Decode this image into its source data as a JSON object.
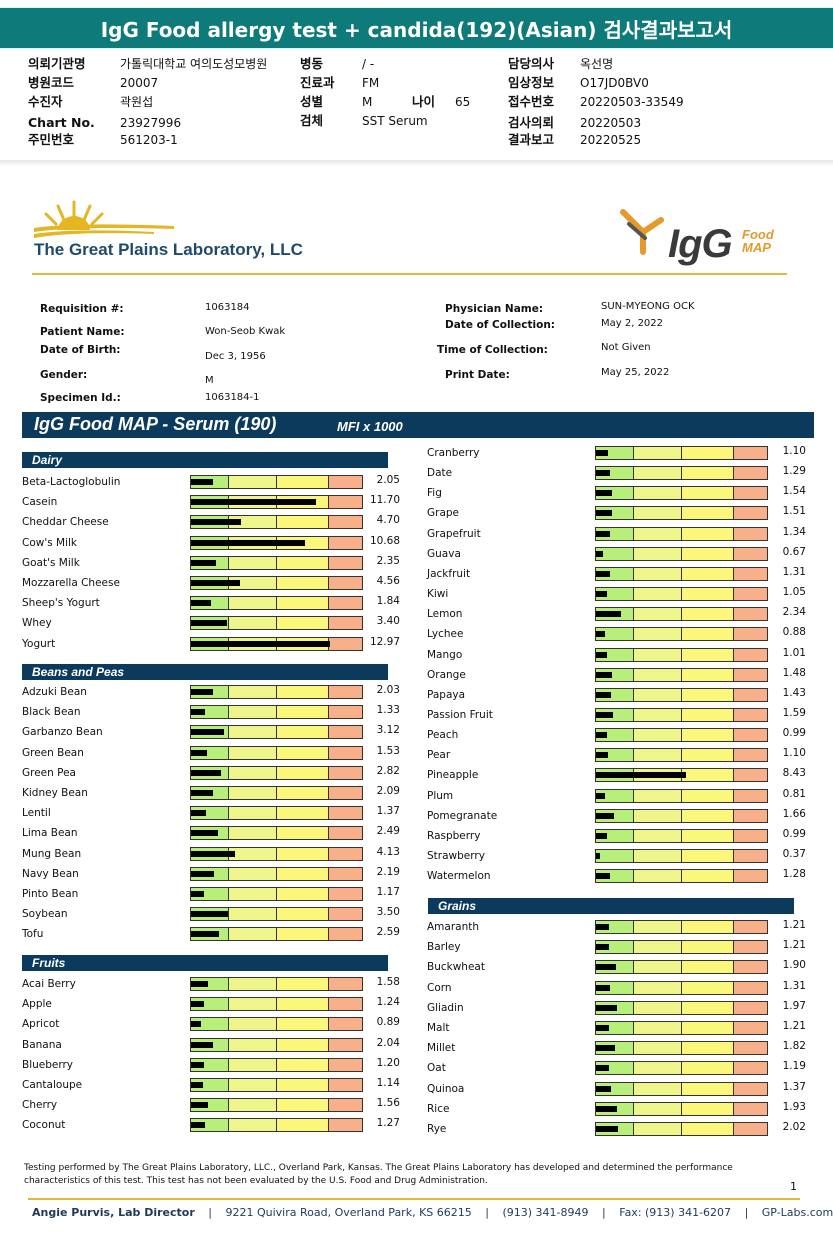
{
  "report_title": "IgG Food allergy test + candida(192)(Asian) 검사결과보고서",
  "header": [
    {
      "label": "의뢰기관명",
      "value": "가톨릭대학교 여의도성모병원"
    },
    {
      "label": "병원코드",
      "value": "20007"
    },
    {
      "label": "수진자",
      "value": "곽원섭"
    },
    {
      "label": "Chart No.",
      "value": "23927996"
    },
    {
      "label": "주민번호",
      "value": "561203-1"
    },
    {
      "label": "병동",
      "value": "/ -"
    },
    {
      "label": "진료과",
      "value": "FM"
    },
    {
      "label": "성별",
      "value": "M"
    },
    {
      "label": "나이",
      "value": "65"
    },
    {
      "label": "검체",
      "value": "SST Serum"
    },
    {
      "label": "담당의사",
      "value": "옥선명"
    },
    {
      "label": "임상정보",
      "value": "O17JD0BV0"
    },
    {
      "label": "접수번호",
      "value": "20220503-33549"
    },
    {
      "label": "검사의뢰",
      "value": "20220503"
    },
    {
      "label": "결과보고",
      "value": "20220525"
    }
  ],
  "lab_name": "The Great Plains Laboratory, LLC",
  "logo": {
    "main": "IgG",
    "sub1": "Food",
    "sub2": "MAP"
  },
  "patient": {
    "requisition_label": "Requisition #:",
    "requisition": "1063184",
    "name_label": "Patient Name:",
    "name": "Won-Seob Kwak",
    "dob_label": "Date of Birth:",
    "dob": "Dec 3, 1956",
    "gender_label": "Gender:",
    "gender": "M",
    "specimen_label": "Specimen Id.:",
    "specimen": "1063184-1",
    "physician_label": "Physician Name:",
    "physician": "SUN-MYEONG OCK",
    "collection_date_label": "Date of Collection:",
    "collection_date": "May 2, 2022",
    "collection_time_label": "Time of Collection:",
    "collection_time": "Not Given",
    "print_date_label": "Print Date:",
    "print_date": "May 25, 2022"
  },
  "map_title": "IgG Food MAP - Serum (190)",
  "map_unit": "MFI x 1000",
  "chart_data": {
    "type": "bar",
    "unit": "MFI x 1000",
    "groups": [
      {
        "name": "Dairy",
        "items": [
          [
            "Beta-Lactoglobulin",
            2.05
          ],
          [
            "Casein",
            11.7
          ],
          [
            "Cheddar Cheese",
            4.7
          ],
          [
            "Cow's Milk",
            10.68
          ],
          [
            "Goat's Milk",
            2.35
          ],
          [
            "Mozzarella Cheese",
            4.56
          ],
          [
            "Sheep's Yogurt",
            1.84
          ],
          [
            "Whey",
            3.4
          ],
          [
            "Yogurt",
            12.97
          ]
        ]
      },
      {
        "name": "Beans and Peas",
        "items": [
          [
            "Adzuki Bean",
            2.03
          ],
          [
            "Black Bean",
            1.33
          ],
          [
            "Garbanzo Bean",
            3.12
          ],
          [
            "Green Bean",
            1.53
          ],
          [
            "Green Pea",
            2.82
          ],
          [
            "Kidney Bean",
            2.09
          ],
          [
            "Lentil",
            1.37
          ],
          [
            "Lima Bean",
            2.49
          ],
          [
            "Mung Bean",
            4.13
          ],
          [
            "Navy Bean",
            2.19
          ],
          [
            "Pinto Bean",
            1.17
          ],
          [
            "Soybean",
            3.5
          ],
          [
            "Tofu",
            2.59
          ]
        ]
      },
      {
        "name": "Fruits",
        "items": [
          [
            "Acai Berry",
            1.58
          ],
          [
            "Apple",
            1.24
          ],
          [
            "Apricot",
            0.89
          ],
          [
            "Banana",
            2.04
          ],
          [
            "Blueberry",
            1.2
          ],
          [
            "Cantaloupe",
            1.14
          ],
          [
            "Cherry",
            1.56
          ],
          [
            "Coconut",
            1.27
          ],
          [
            "Cranberry",
            1.1
          ],
          [
            "Date",
            1.29
          ],
          [
            "Fig",
            1.54
          ],
          [
            "Grape",
            1.51
          ],
          [
            "Grapefruit",
            1.34
          ],
          [
            "Guava",
            0.67
          ],
          [
            "Jackfruit",
            1.31
          ],
          [
            "Kiwi",
            1.05
          ],
          [
            "Lemon",
            2.34
          ],
          [
            "Lychee",
            0.88
          ],
          [
            "Mango",
            1.01
          ],
          [
            "Orange",
            1.48
          ],
          [
            "Papaya",
            1.43
          ],
          [
            "Passion Fruit",
            1.59
          ],
          [
            "Peach",
            0.99
          ],
          [
            "Pear",
            1.1
          ],
          [
            "Pineapple",
            8.43
          ],
          [
            "Plum",
            0.81
          ],
          [
            "Pomegranate",
            1.66
          ],
          [
            "Raspberry",
            0.99
          ],
          [
            "Strawberry",
            0.37
          ],
          [
            "Watermelon",
            1.28
          ]
        ]
      },
      {
        "name": "Grains",
        "items": [
          [
            "Amaranth",
            1.21
          ],
          [
            "Barley",
            1.21
          ],
          [
            "Buckwheat",
            1.9
          ],
          [
            "Corn",
            1.31
          ],
          [
            "Gliadin",
            1.97
          ],
          [
            "Malt",
            1.21
          ],
          [
            "Millet",
            1.82
          ],
          [
            "Oat",
            1.19
          ],
          [
            "Quinoa",
            1.37
          ],
          [
            "Rice",
            1.93
          ],
          [
            "Rye",
            2.02
          ]
        ]
      }
    ]
  },
  "disclaimer": "Testing performed by The Great Plains Laboratory, LLC., Overland Park, Kansas.  The Great Plains Laboratory has developed and determined the performance characteristics of this test.  This test has not been evaluated by the U.S.  Food and Drug Administration.",
  "page_number": "1",
  "footer": {
    "director": "Angie Purvis, Lab Director",
    "address": "9221 Quivira Road, Overland Park, KS 66215",
    "phone": "(913) 341-8949",
    "fax": "Fax: (913) 341-6207",
    "web": "GP-Labs.com"
  }
}
